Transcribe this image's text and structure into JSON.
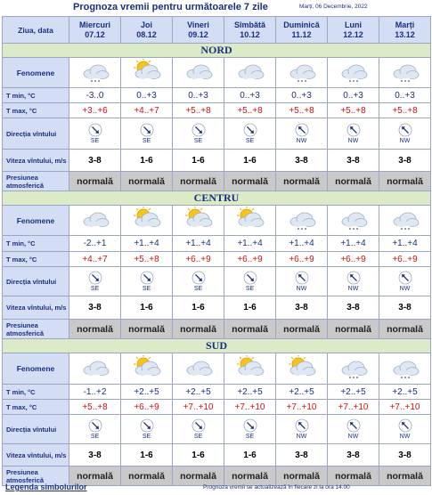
{
  "header": {
    "title": "Prognoza vremii pentru următoarele 7 zile",
    "date": "Marți, 06 Decembrie, 2022"
  },
  "table": {
    "column_header": "Ziua, data",
    "days": [
      {
        "name": "Miercuri",
        "date": "07.12"
      },
      {
        "name": "Joi",
        "date": "08.12"
      },
      {
        "name": "Vineri",
        "date": "09.12"
      },
      {
        "name": "Sîmbătă",
        "date": "10.12"
      },
      {
        "name": "Duminică",
        "date": "11.12"
      },
      {
        "name": "Luni",
        "date": "12.12"
      },
      {
        "name": "Marți",
        "date": "13.12"
      }
    ],
    "row_labels": {
      "phenomena": "Fenomene",
      "t_min": "T min, °C",
      "t_max": "T max, °C",
      "wind_dir": "Direcția vîntului",
      "wind_speed": "Viteza vîntului, m/s",
      "pressure": "Presiunea atmosferică"
    },
    "regions": [
      {
        "name": "NORD",
        "t_min": [
          "-3..0",
          "0..+3",
          "0..+3",
          "0..+3",
          "0..+3",
          "0..+3",
          "0..+3"
        ],
        "t_max": [
          "+3..+6",
          "+4..+7",
          "+5..+8",
          "+5..+8",
          "+5..+8",
          "+5..+8",
          "+5..+8"
        ],
        "wind_dir": [
          "SE",
          "SE",
          "SE",
          "SE",
          "NW",
          "NW",
          "NW"
        ],
        "wind_speed": [
          "3-8",
          "1-6",
          "1-6",
          "1-6",
          "3-8",
          "3-8",
          "3-8"
        ],
        "pressure": [
          "normală",
          "normală",
          "normală",
          "normală",
          "normală",
          "normală",
          "normală"
        ]
      },
      {
        "name": "CENTRU",
        "t_min": [
          "-2..+1",
          "+1..+4",
          "+1..+4",
          "+1..+4",
          "+1..+4",
          "+1..+4",
          "+1..+4"
        ],
        "t_max": [
          "+4..+7",
          "+5..+8",
          "+6..+9",
          "+6..+9",
          "+6..+9",
          "+6..+9",
          "+6..+9"
        ],
        "wind_dir": [
          "SE",
          "SE",
          "SE",
          "SE",
          "NW",
          "NW",
          "NW"
        ],
        "wind_speed": [
          "3-8",
          "1-6",
          "1-6",
          "1-6",
          "3-8",
          "3-8",
          "3-8"
        ],
        "pressure": [
          "normală",
          "normală",
          "normală",
          "normală",
          "normală",
          "normală",
          "normală"
        ]
      },
      {
        "name": "SUD",
        "t_min": [
          "-1..+2",
          "+2..+5",
          "+2..+5",
          "+2..+5",
          "+2..+5",
          "+2..+5",
          "+2..+5"
        ],
        "t_max": [
          "+5..+8",
          "+6..+9",
          "+7..+10",
          "+7..+10",
          "+7..+10",
          "+7..+10",
          "+7..+10"
        ],
        "wind_dir": [
          "SE",
          "SE",
          "SE",
          "SE",
          "NW",
          "NW",
          "NW"
        ],
        "wind_speed": [
          "3-8",
          "1-6",
          "1-6",
          "1-6",
          "3-8",
          "3-8",
          "3-8"
        ],
        "pressure": [
          "normală",
          "normală",
          "normală",
          "normală",
          "normală",
          "normală",
          "normală"
        ]
      }
    ]
  },
  "footer": {
    "legend": "Legenda simbolurilor",
    "note": "Prognoza vremii se actualizează în fiecare zi la ora 14.00"
  }
}
